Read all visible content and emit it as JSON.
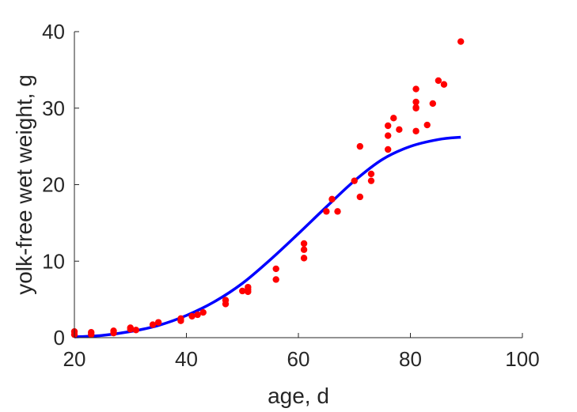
{
  "chart_data": {
    "type": "scatter",
    "xlabel": "age, d",
    "ylabel": "yolk-free wet weight, g",
    "xlim": [
      20,
      100
    ],
    "ylim": [
      0,
      40
    ],
    "xticks": [
      "20",
      "40",
      "60",
      "80",
      "100"
    ],
    "yticks": [
      "0",
      "10",
      "20",
      "30",
      "40"
    ],
    "grid": false,
    "box": "left-bottom axes only",
    "series": [
      {
        "kind": "points",
        "color": "#ff0000",
        "x": [
          20,
          20,
          23,
          23,
          27,
          27,
          30,
          30,
          31,
          34,
          35,
          39,
          39,
          41,
          42,
          43,
          47,
          47,
          50,
          51,
          51,
          51,
          56,
          56,
          61,
          61,
          61,
          65,
          66,
          67,
          70,
          71,
          71,
          73,
          73,
          76,
          76,
          76,
          77,
          78,
          81,
          81,
          81,
          81,
          81,
          83,
          84,
          85,
          86,
          89
        ],
        "y": [
          0.8,
          0.4,
          0.7,
          0.4,
          0.9,
          0.6,
          1.3,
          1.1,
          1.0,
          1.7,
          2.0,
          2.5,
          2.2,
          2.8,
          3.0,
          3.3,
          4.9,
          4.4,
          6.1,
          6.6,
          6.0,
          6.3,
          9.0,
          7.6,
          12.3,
          11.5,
          10.4,
          16.5,
          18.1,
          16.5,
          20.5,
          25.0,
          18.4,
          21.4,
          20.5,
          27.7,
          26.4,
          24.6,
          28.7,
          27.2,
          32.5,
          30.8,
          30.0,
          27.0,
          30.1,
          27.8,
          30.6,
          33.6,
          33.1,
          38.7
        ]
      },
      {
        "kind": "fit-line",
        "color": "#0000ff",
        "x": [
          20,
          25,
          30,
          35,
          40,
          45,
          50,
          55,
          60,
          65,
          70,
          75,
          80,
          85,
          89
        ],
        "y": [
          0.1,
          0.3,
          0.8,
          1.6,
          2.9,
          4.7,
          7.1,
          10.2,
          13.6,
          17.1,
          20.5,
          23.3,
          25.0,
          25.9,
          26.2
        ]
      }
    ]
  }
}
